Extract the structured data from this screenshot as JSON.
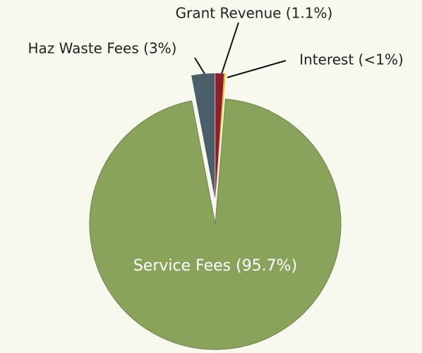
{
  "chart_data": {
    "type": "pie",
    "categories": [
      "Grant Revenue (1.1%)",
      "Interest (<1%)",
      "Service Fees (95.7%)",
      "Haz Waste Fees (3%)"
    ],
    "values": [
      1.1,
      0.2,
      95.7,
      3
    ],
    "colors": [
      "#8b1f2e",
      "#f2c21b",
      "#8aa35a",
      "#4b5f6b"
    ]
  }
}
